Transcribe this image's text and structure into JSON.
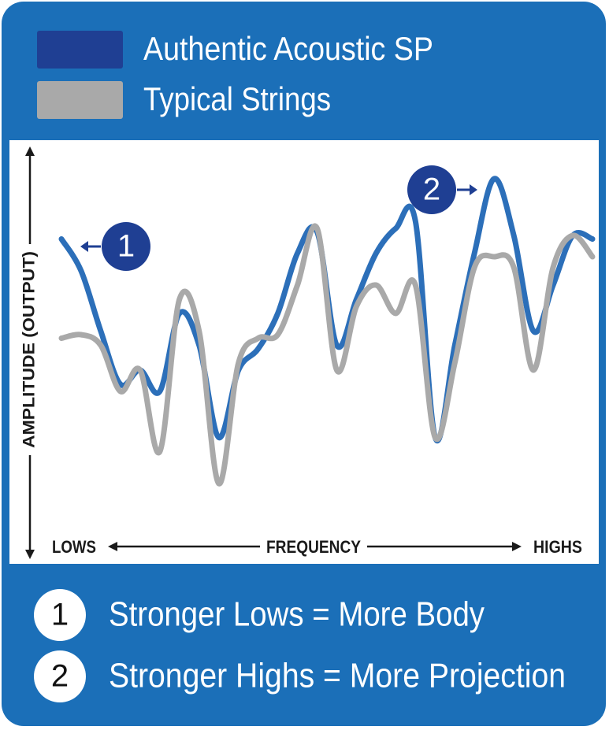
{
  "chart_data": {
    "type": "line",
    "y_label": "AMPLITUDE (OUTPUT)",
    "x_label": "FREQUENCY",
    "x_low_label": "LOWS",
    "x_high_label": "HIGHS",
    "categories": [
      null,
      null,
      null,
      null,
      null,
      null,
      null,
      null,
      null,
      null,
      null,
      null,
      null,
      null,
      null,
      null,
      null,
      null,
      null,
      null,
      null,
      null,
      null,
      null,
      null,
      null,
      null,
      null
    ],
    "ylim": [
      0,
      100
    ],
    "series": [
      {
        "name": "Authentic Acoustic SP",
        "color": "#2c6fb9",
        "legend_color": "#1f3f93",
        "values": [
          77,
          68,
          51,
          36,
          40,
          34,
          56,
          47,
          21,
          40,
          46,
          56,
          73,
          79,
          47,
          60,
          73,
          80,
          82,
          21,
          47,
          73,
          94,
          78,
          51,
          64,
          78,
          77
        ]
      },
      {
        "name": "Typical Strings",
        "color": "#a9a9a9",
        "legend_color": "#a9a9a9",
        "values": [
          49,
          50,
          47,
          34,
          40,
          17,
          60,
          51,
          8,
          42,
          49,
          50,
          64,
          80,
          40,
          58,
          64,
          56,
          64,
          21,
          42,
          69,
          72,
          69,
          40,
          69,
          78,
          72
        ]
      }
    ],
    "annotations": [
      {
        "label": "1"
      },
      {
        "label": "2"
      }
    ],
    "notes": [
      {
        "marker": "1",
        "text": "Stronger Lows = More Body"
      },
      {
        "marker": "2",
        "text": "Stronger Highs = More Projection"
      }
    ]
  }
}
